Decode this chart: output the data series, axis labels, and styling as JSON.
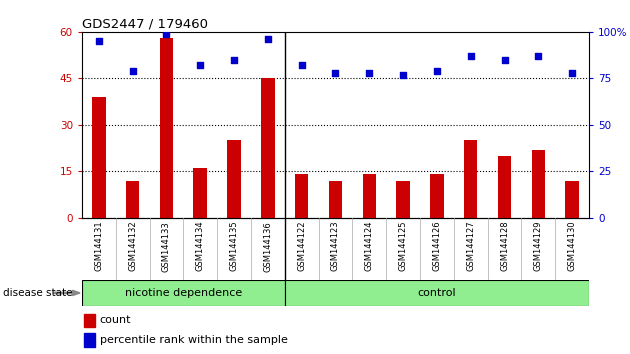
{
  "title": "GDS2447 / 179460",
  "categories": [
    "GSM144131",
    "GSM144132",
    "GSM144133",
    "GSM144134",
    "GSM144135",
    "GSM144136",
    "GSM144122",
    "GSM144123",
    "GSM144124",
    "GSM144125",
    "GSM144126",
    "GSM144127",
    "GSM144128",
    "GSM144129",
    "GSM144130"
  ],
  "bar_values": [
    39,
    12,
    58,
    16,
    25,
    45,
    14,
    12,
    14,
    12,
    14,
    25,
    20,
    22,
    12
  ],
  "dot_values": [
    95,
    79,
    99,
    82,
    85,
    96,
    82,
    78,
    78,
    77,
    79,
    87,
    85,
    87,
    78
  ],
  "group1_label": "nicotine dependence",
  "group2_label": "control",
  "group1_count": 6,
  "group2_count": 9,
  "bar_color": "#cc0000",
  "dot_color": "#0000cc",
  "left_ylim": [
    0,
    60
  ],
  "right_ylim": [
    0,
    100
  ],
  "left_yticks": [
    0,
    15,
    30,
    45,
    60
  ],
  "right_yticks": [
    0,
    25,
    50,
    75,
    100
  ],
  "left_ytick_labels": [
    "0",
    "15",
    "30",
    "45",
    "60"
  ],
  "right_ytick_labels": [
    "0",
    "25",
    "50",
    "75",
    "100%"
  ],
  "grid_lines": [
    15,
    30,
    45
  ],
  "bg_color": "#ffffff",
  "tick_bg_color": "#d0d0d0",
  "group_color": "#90ee90",
  "disease_state_label": "disease state",
  "legend_count_label": "count",
  "legend_pct_label": "percentile rank within the sample"
}
